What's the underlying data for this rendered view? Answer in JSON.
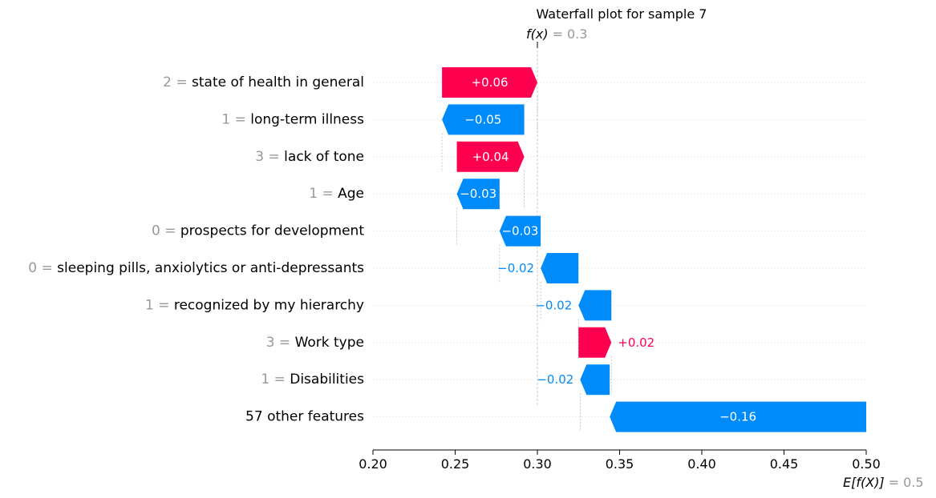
{
  "chart_data": {
    "type": "bar",
    "title": "Waterfall plot for sample 7",
    "fx": {
      "label": "f(x)",
      "equals": "=",
      "value": "0.3"
    },
    "efx": {
      "label": "E[f(X)]",
      "equals": "=",
      "value": "0.5"
    },
    "features": [
      {
        "value": "2",
        "name": "state of health in general",
        "start": 0.242,
        "end": 0.3,
        "label": "+0.06",
        "sign": "pos"
      },
      {
        "value": "1",
        "name": "long-term illness",
        "start": 0.292,
        "end": 0.242,
        "label": "−0.05",
        "sign": "neg"
      },
      {
        "value": "3",
        "name": "lack of tone",
        "start": 0.251,
        "end": 0.292,
        "label": "+0.04",
        "sign": "pos"
      },
      {
        "value": "1",
        "name": "Age",
        "start": 0.277,
        "end": 0.251,
        "label": "−0.03",
        "sign": "neg"
      },
      {
        "value": "0",
        "name": "prospects for development",
        "start": 0.302,
        "end": 0.277,
        "label": "−0.03",
        "sign": "neg"
      },
      {
        "value": "0",
        "name": "sleeping pills, anxiolytics or anti-depressants",
        "start": 0.325,
        "end": 0.302,
        "label": "−0.02",
        "sign": "neg"
      },
      {
        "value": "1",
        "name": "recognized by my hierarchy",
        "start": 0.345,
        "end": 0.325,
        "label": "−0.02",
        "sign": "neg"
      },
      {
        "value": "3",
        "name": "Work type",
        "start": 0.325,
        "end": 0.345,
        "label": "+0.02",
        "sign": "pos"
      },
      {
        "value": "1",
        "name": "Disabilities",
        "start": 0.344,
        "end": 0.326,
        "label": "−0.02",
        "sign": "neg"
      },
      {
        "value": "",
        "name": "57 other features",
        "start": 0.5,
        "end": 0.344,
        "label": "−0.16",
        "sign": "neg"
      }
    ],
    "xlim": [
      0.2,
      0.5
    ],
    "xticks": [
      "0.20",
      "0.25",
      "0.30",
      "0.35",
      "0.40",
      "0.45",
      "0.50"
    ],
    "colors": {
      "positive": "#ff0051",
      "negative": "#008bfb",
      "muted": "#999999",
      "text": "#000000"
    }
  }
}
